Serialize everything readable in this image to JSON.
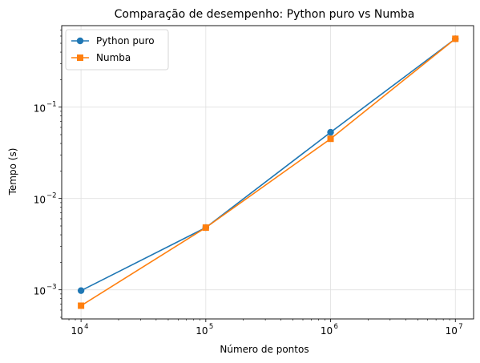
{
  "chart_data": {
    "type": "line",
    "title": "Comparação de desempenho: Python puro vs Numba",
    "xlabel": "Número de pontos",
    "ylabel": "Tempo (s)",
    "xscale": "log",
    "yscale": "log",
    "x": [
      10000,
      100000,
      1000000,
      10000000
    ],
    "x_tick_labels": [
      {
        "base": "10",
        "exp": "4"
      },
      {
        "base": "10",
        "exp": "5"
      },
      {
        "base": "10",
        "exp": "6"
      },
      {
        "base": "10",
        "exp": "7"
      }
    ],
    "y_tick_labels": [
      {
        "base": "10",
        "exp": "−3",
        "value": 0.001
      },
      {
        "base": "10",
        "exp": "−2",
        "value": 0.01
      },
      {
        "base": "10",
        "exp": "−1",
        "value": 0.1
      }
    ],
    "xlim": [
      7000,
      14000000
    ],
    "ylim": [
      0.00048,
      0.78
    ],
    "grid": true,
    "legend_position": "top-left",
    "series": [
      {
        "name": "Python puro",
        "values": [
          0.00098,
          0.0048,
          0.053,
          0.56
        ],
        "color": "#1f77b4",
        "marker": "circle"
      },
      {
        "name": "Numba",
        "values": [
          0.00067,
          0.0048,
          0.045,
          0.56
        ],
        "color": "#ff7f0e",
        "marker": "square"
      }
    ]
  }
}
